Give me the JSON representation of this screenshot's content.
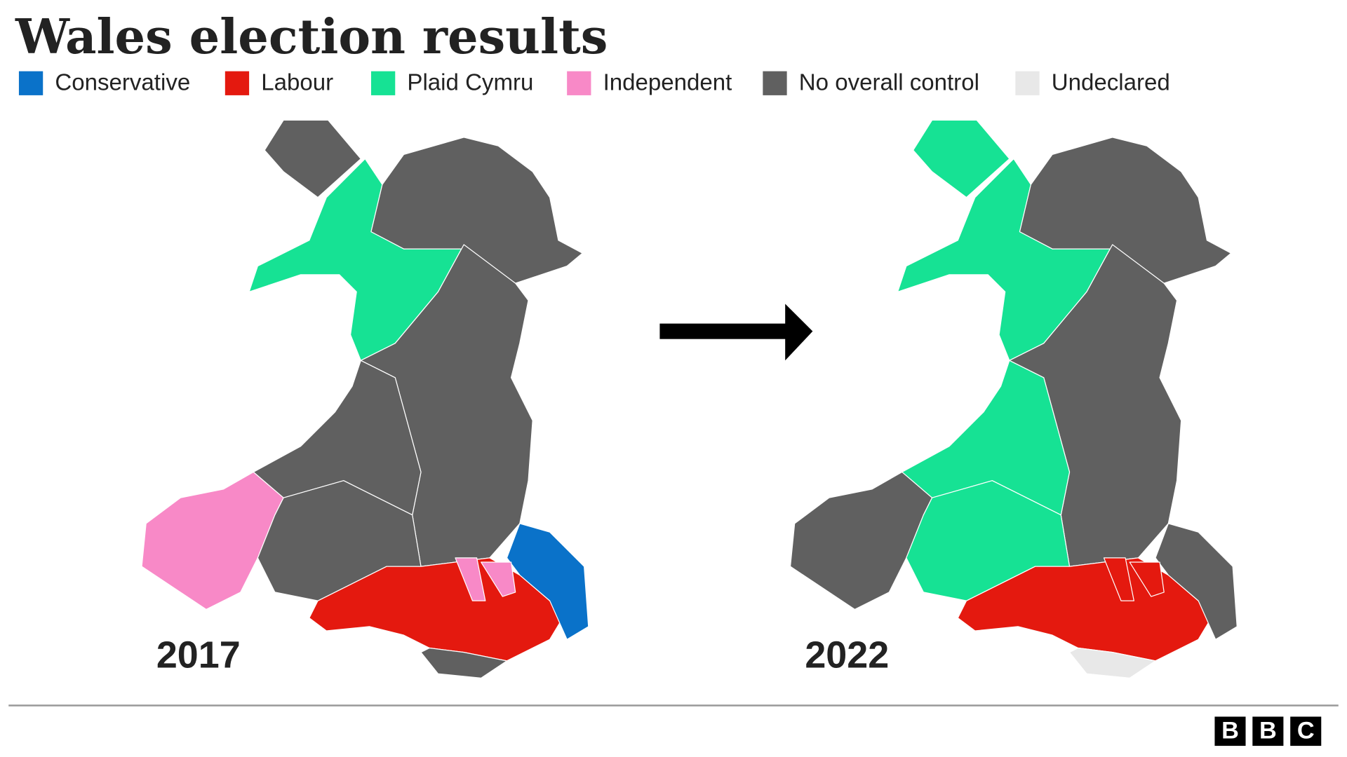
{
  "header": {
    "title": "Wales election results"
  },
  "legend": [
    {
      "label": "Conservative",
      "color": "#0a72c9"
    },
    {
      "label": "Labour",
      "color": "#e4190f"
    },
    {
      "label": "Plaid Cymru",
      "color": "#16e294"
    },
    {
      "label": "Independent",
      "color": "#f889c7"
    },
    {
      "label": "No overall control",
      "color": "#606060"
    },
    {
      "label": "Undeclared",
      "color": "#e8e8e8"
    }
  ],
  "maps": [
    {
      "year": "2017"
    },
    {
      "year": "2022"
    }
  ],
  "footer": {
    "logo": [
      "B",
      "B",
      "C"
    ]
  }
}
